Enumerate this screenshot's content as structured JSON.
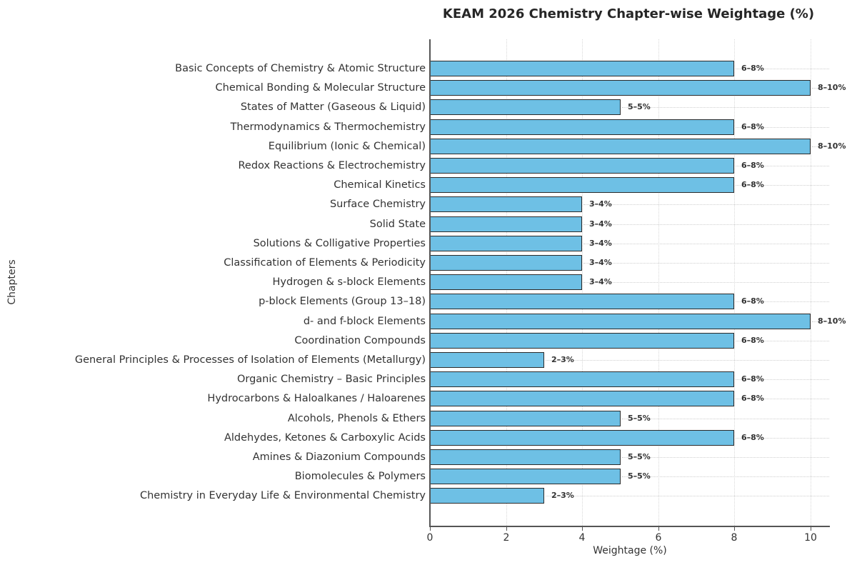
{
  "chart_data": {
    "type": "bar",
    "orientation": "horizontal",
    "title": "KEAM 2026 Chemistry Chapter-wise Weightage (%)",
    "xlabel": "Weightage (%)",
    "ylabel": "Chapters",
    "xlim": [
      0,
      10.5
    ],
    "xticks": [
      "0",
      "2",
      "4",
      "6",
      "8",
      "10"
    ],
    "grid": true,
    "bar_color": "#6ec0e5",
    "bar_edge_color": "#2b2b2b",
    "categories": [
      "Basic Concepts of Chemistry & Atomic Structure",
      "Chemical Bonding & Molecular Structure",
      "States of Matter (Gaseous & Liquid)",
      "Thermodynamics & Thermochemistry",
      "Equilibrium (Ionic & Chemical)",
      "Redox Reactions & Electrochemistry",
      "Chemical Kinetics",
      "Surface Chemistry",
      "Solid State",
      "Solutions & Colligative Properties",
      "Classification of Elements & Periodicity",
      "Hydrogen & s-block Elements",
      "p-block Elements (Group 13–18)",
      "d- and f-block Elements",
      "Coordination Compounds",
      "General Principles & Processes of Isolation of Elements (Metallurgy)",
      "Organic Chemistry – Basic Principles",
      "Hydrocarbons & Haloalkanes / Haloarenes",
      "Alcohols, Phenols & Ethers",
      "Aldehydes, Ketones & Carboxylic Acids",
      "Amines & Diazonium Compounds",
      "Biomolecules & Polymers",
      "Chemistry in Everyday Life & Environmental Chemistry"
    ],
    "values": [
      8,
      10,
      5,
      8,
      10,
      8,
      8,
      4,
      4,
      4,
      4,
      4,
      8,
      10,
      8,
      3,
      8,
      8,
      5,
      8,
      5,
      5,
      3
    ],
    "labels": [
      "6–8%",
      "8–10%",
      "5–5%",
      "6–8%",
      "8–10%",
      "6–8%",
      "6–8%",
      "3–4%",
      "3–4%",
      "3–4%",
      "3–4%",
      "3–4%",
      "6–8%",
      "8–10%",
      "6–8%",
      "2–3%",
      "6–8%",
      "6–8%",
      "5–5%",
      "6–8%",
      "5–5%",
      "5–5%",
      "2–3%"
    ]
  }
}
